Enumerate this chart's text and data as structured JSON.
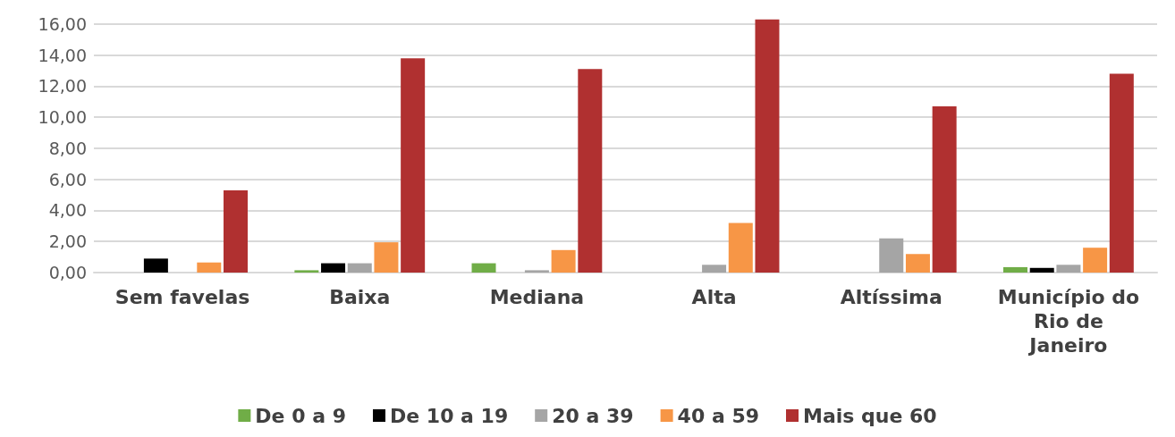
{
  "chart_data": {
    "type": "bar",
    "categories": [
      "Sem favelas",
      "Baixa",
      "Mediana",
      "Alta",
      "Altíssima",
      "Município do Rio de Janeiro"
    ],
    "series": [
      {
        "name": "De 0 a 9",
        "color": "#70ad47",
        "values": [
          0,
          0.15,
          0.6,
          0,
          0,
          0.35
        ]
      },
      {
        "name": "De 10 a 19",
        "color": "#000000",
        "values": [
          0.9,
          0.6,
          0,
          0,
          0,
          0.3
        ]
      },
      {
        "name": "20 a 39",
        "color": "#a5a5a5",
        "values": [
          0,
          0.6,
          0.15,
          0.5,
          2.2,
          0.5
        ]
      },
      {
        "name": "40 a 59",
        "color": "#f79646",
        "values": [
          0.65,
          1.95,
          1.45,
          3.2,
          1.2,
          1.6
        ]
      },
      {
        "name": "Mais que 60",
        "color": "#b03030",
        "values": [
          5.3,
          13.8,
          13.1,
          16.3,
          10.7,
          12.8
        ]
      }
    ],
    "ylim": [
      0,
      16.4
    ],
    "yticks": [
      {
        "value": 0,
        "label": "0,00"
      },
      {
        "value": 2,
        "label": "2,00"
      },
      {
        "value": 4,
        "label": "4,00"
      },
      {
        "value": 6,
        "label": "6,00"
      },
      {
        "value": 8,
        "label": "8,00"
      },
      {
        "value": 10,
        "label": "10,00"
      },
      {
        "value": 12,
        "label": "12,00"
      },
      {
        "value": 14,
        "label": "14,00"
      },
      {
        "value": 16,
        "label": "16,00"
      }
    ],
    "grid": "y",
    "legend": "bottom"
  }
}
